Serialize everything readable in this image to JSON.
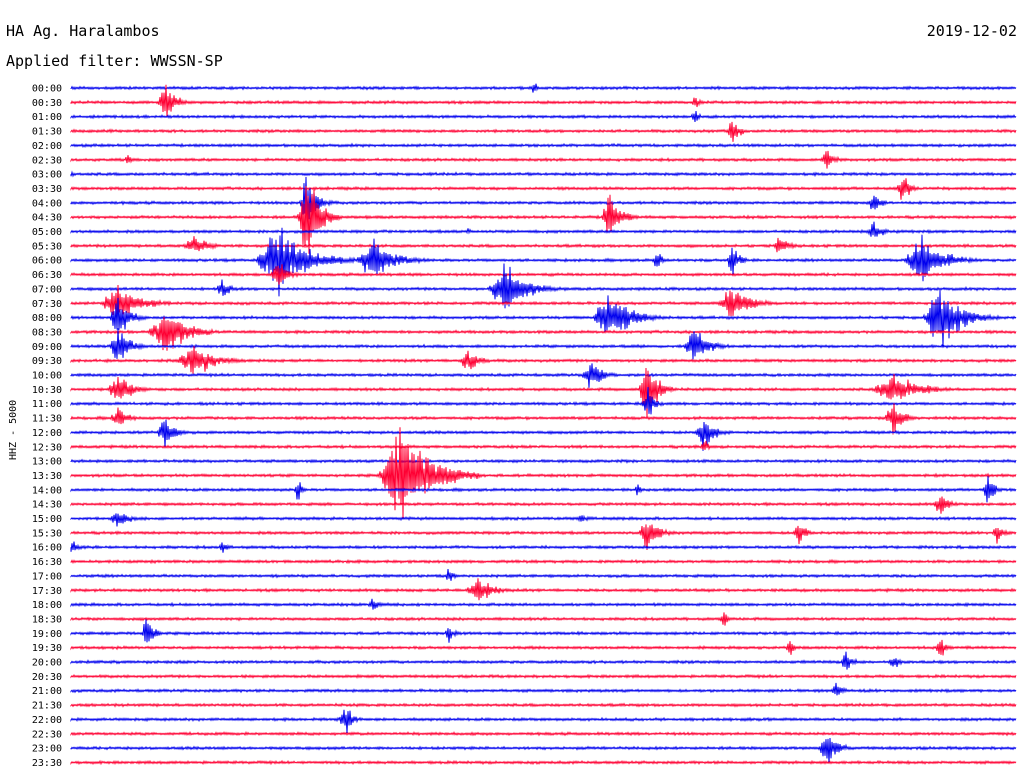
{
  "header": {
    "station": "HA Ag. Haralambos",
    "date": "2019-12-02",
    "filter": "Applied filter: WWSSN-SP"
  },
  "chart_data": {
    "type": "line",
    "title": "HA Ag. Haralambos",
    "subtitle": "Applied filter: WWSSN-SP",
    "ylabel": "HHZ - 5000",
    "colors": {
      "even": "#0000ee",
      "odd": "#ff0033"
    },
    "traces": [
      "00:00",
      "00:30",
      "01:00",
      "01:30",
      "02:00",
      "02:30",
      "03:00",
      "03:30",
      "04:00",
      "04:30",
      "05:00",
      "05:30",
      "06:00",
      "06:30",
      "07:00",
      "07:30",
      "08:00",
      "08:30",
      "09:00",
      "09:30",
      "10:00",
      "10:30",
      "11:00",
      "11:30",
      "12:00",
      "12:30",
      "13:00",
      "13:30",
      "14:00",
      "14:30",
      "15:00",
      "15:30",
      "16:00",
      "16:30",
      "17:00",
      "17:30",
      "18:00",
      "18:30",
      "19:00",
      "19:30",
      "20:00",
      "20:30",
      "21:00",
      "21:30",
      "22:00",
      "22:30",
      "23:00",
      "23:30"
    ],
    "events": [
      [
        1,
        0.1,
        22,
        30
      ],
      [
        0,
        0.49,
        8,
        10
      ],
      [
        1,
        0.66,
        10,
        12
      ],
      [
        2,
        0.66,
        10,
        12
      ],
      [
        3,
        0.7,
        16,
        20
      ],
      [
        5,
        0.06,
        10,
        10
      ],
      [
        5,
        0.8,
        14,
        20
      ],
      [
        6,
        0.0,
        6,
        6
      ],
      [
        7,
        0.88,
        22,
        20
      ],
      [
        8,
        0.25,
        40,
        26
      ],
      [
        8,
        0.85,
        14,
        20
      ],
      [
        9,
        0.25,
        55,
        34
      ],
      [
        9,
        0.57,
        30,
        30
      ],
      [
        10,
        0.42,
        6,
        8
      ],
      [
        10,
        0.85,
        14,
        24
      ],
      [
        11,
        0.13,
        12,
        40
      ],
      [
        11,
        0.75,
        12,
        24
      ],
      [
        12,
        0.22,
        40,
        80
      ],
      [
        12,
        0.32,
        24,
        60
      ],
      [
        12,
        0.62,
        14,
        14
      ],
      [
        12,
        0.7,
        20,
        20
      ],
      [
        12,
        0.9,
        30,
        60
      ],
      [
        13,
        0.22,
        16,
        30
      ],
      [
        14,
        0.16,
        14,
        20
      ],
      [
        14,
        0.46,
        30,
        60
      ],
      [
        15,
        0.05,
        24,
        60
      ],
      [
        15,
        0.7,
        22,
        50
      ],
      [
        16,
        0.05,
        26,
        30
      ],
      [
        16,
        0.57,
        30,
        60
      ],
      [
        16,
        0.92,
        40,
        60
      ],
      [
        17,
        0.1,
        28,
        60
      ],
      [
        18,
        0.05,
        28,
        30
      ],
      [
        18,
        0.66,
        22,
        40
      ],
      [
        19,
        0.13,
        20,
        60
      ],
      [
        19,
        0.42,
        16,
        30
      ],
      [
        20,
        0.55,
        20,
        30
      ],
      [
        21,
        0.05,
        20,
        40
      ],
      [
        21,
        0.61,
        40,
        30
      ],
      [
        21,
        0.87,
        20,
        70
      ],
      [
        22,
        0.61,
        20,
        20
      ],
      [
        23,
        0.05,
        12,
        30
      ],
      [
        23,
        0.87,
        20,
        30
      ],
      [
        24,
        0.1,
        20,
        30
      ],
      [
        24,
        0.67,
        22,
        30
      ],
      [
        25,
        0.67,
        10,
        14
      ],
      [
        27,
        0.35,
        64,
        80
      ],
      [
        28,
        0.24,
        16,
        12
      ],
      [
        28,
        0.6,
        10,
        12
      ],
      [
        28,
        0.97,
        24,
        16
      ],
      [
        29,
        0.92,
        14,
        24
      ],
      [
        30,
        0.05,
        12,
        30
      ],
      [
        30,
        0.54,
        6,
        20
      ],
      [
        31,
        0.61,
        22,
        30
      ],
      [
        31,
        0.77,
        16,
        20
      ],
      [
        31,
        0.98,
        14,
        16
      ],
      [
        32,
        0.0,
        10,
        20
      ],
      [
        32,
        0.16,
        10,
        12
      ],
      [
        34,
        0.4,
        12,
        12
      ],
      [
        35,
        0.43,
        20,
        40
      ],
      [
        36,
        0.32,
        10,
        20
      ],
      [
        37,
        0.69,
        12,
        12
      ],
      [
        38,
        0.08,
        30,
        16
      ],
      [
        38,
        0.4,
        10,
        16
      ],
      [
        39,
        0.76,
        12,
        12
      ],
      [
        39,
        0.92,
        14,
        16
      ],
      [
        40,
        0.82,
        14,
        20
      ],
      [
        40,
        0.87,
        10,
        20
      ],
      [
        42,
        0.81,
        10,
        20
      ],
      [
        44,
        0.29,
        20,
        20
      ],
      [
        46,
        0.8,
        20,
        30
      ]
    ]
  }
}
